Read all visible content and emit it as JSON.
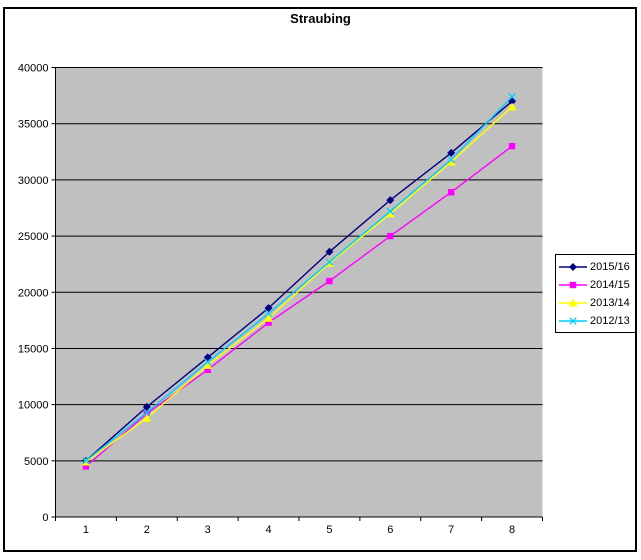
{
  "chart_data": {
    "type": "line",
    "title": "Straubing",
    "xlabel": "",
    "ylabel": "",
    "categories": [
      "1",
      "2",
      "3",
      "4",
      "5",
      "6",
      "7",
      "8"
    ],
    "series": [
      {
        "name": "2015/16",
        "color": "#000080",
        "marker": "diamond",
        "values": [
          5000,
          9800,
          14200,
          18600,
          23600,
          28200,
          32400,
          37000
        ]
      },
      {
        "name": "2014/15",
        "color": "#FF00FF",
        "marker": "square",
        "values": [
          4500,
          9200,
          13100,
          17300,
          21000,
          25000,
          28900,
          33000
        ]
      },
      {
        "name": "2013/14",
        "color": "#FFFF00",
        "marker": "triangle",
        "values": [
          4900,
          8800,
          13500,
          17700,
          22600,
          27000,
          31600,
          36500
        ]
      },
      {
        "name": "2012/13",
        "color": "#00CCFF",
        "marker": "x",
        "values": [
          5000,
          9300,
          13800,
          18100,
          22700,
          27200,
          31800,
          37400
        ]
      }
    ],
    "ylim": [
      0,
      40000
    ],
    "ytick_step": 5000,
    "ytick_labels": [
      "0",
      "5000",
      "10000",
      "15000",
      "20000",
      "25000",
      "30000",
      "35000",
      "40000"
    ],
    "grid": true,
    "legend_position": "right",
    "colors": {
      "plot_bg": "#C0C0C0",
      "grid": "#000000",
      "axis": "#000000",
      "text": "#000000",
      "canvas_bg": "#FFFFFF",
      "frame_border": "#000000"
    }
  }
}
